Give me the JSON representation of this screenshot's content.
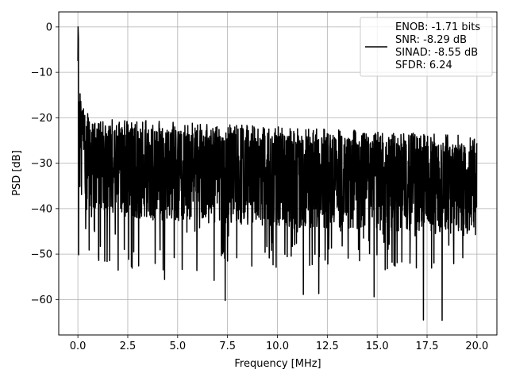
{
  "chart_data": {
    "type": "line",
    "xlabel": "Frequency [MHz]",
    "ylabel": "PSD [dB]",
    "xlim": [
      -0.96,
      21.0
    ],
    "ylim": [
      -67.8,
      3.3
    ],
    "xticks": [
      0.0,
      2.5,
      5.0,
      7.5,
      10.0,
      12.5,
      15.0,
      17.5,
      20.0
    ],
    "xtick_labels": [
      "0.0",
      "2.5",
      "5.0",
      "7.5",
      "10.0",
      "12.5",
      "15.0",
      "17.5",
      "20.0"
    ],
    "yticks": [
      0,
      -10,
      -20,
      -30,
      -40,
      -50,
      -60
    ],
    "ytick_labels": [
      "0",
      "−10",
      "−20",
      "−30",
      "−40",
      "−50",
      "−60"
    ],
    "grid": true,
    "legend_position": "top-right",
    "series": [
      {
        "name": "ENOB: -1.71 bits\nSNR: -8.29 dB\nSINAD: -8.55 dB\nSFDR: 6.24",
        "color": "#000000",
        "x_range": [
          0.0,
          20.0
        ],
        "peak": {
          "x": 0.0,
          "y": 0.0
        },
        "start_level": -7.5,
        "noise_upper_envelope": -20,
        "noise_upper_envelope_late": -24,
        "noise_floor_typical": -42,
        "notable_minima": [
          {
            "x": 7.38,
            "y": -60.2
          },
          {
            "x": 17.32,
            "y": -64.5
          },
          {
            "x": 18.25,
            "y": -64.6
          },
          {
            "x": 11.3,
            "y": -58.9
          },
          {
            "x": 12.07,
            "y": -58.7
          },
          {
            "x": 14.85,
            "y": -59.4
          },
          {
            "x": 6.83,
            "y": -55.8
          },
          {
            "x": 4.35,
            "y": -55.6
          }
        ]
      }
    ]
  },
  "legend": {
    "lines": [
      "ENOB: -1.71 bits",
      "SNR: -8.29 dB",
      "SINAD: -8.55 dB",
      "SFDR: 6.24"
    ]
  }
}
